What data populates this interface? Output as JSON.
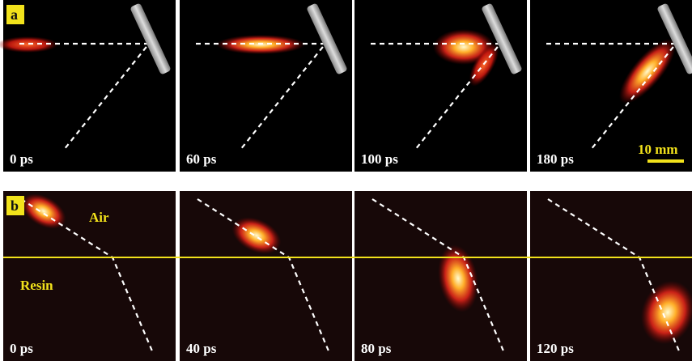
{
  "panels": [
    {
      "label": "a",
      "frames": [
        "0 ps",
        "60 ps",
        "100 ps",
        "180 ps"
      ],
      "scale_bar": "10 mm"
    },
    {
      "label": "b",
      "frames": [
        "0 ps",
        "40 ps",
        "80 ps",
        "120 ps"
      ],
      "annotations": [
        "Air",
        "Resin"
      ]
    }
  ]
}
